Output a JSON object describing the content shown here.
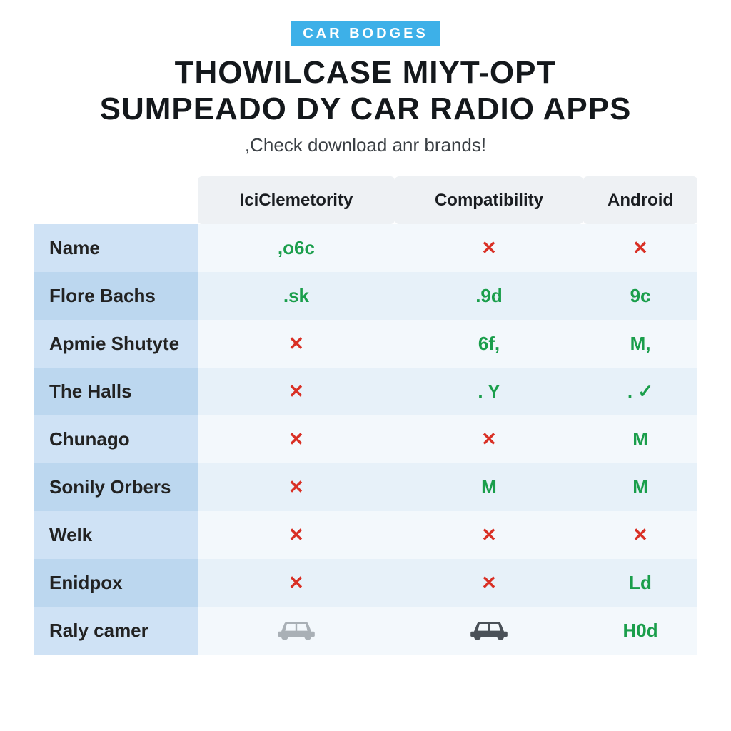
{
  "badge": "CAR BODGES",
  "title_line1": "THOWILCASE MIYT-OPT",
  "title_line2": "SUMPEADO DY CAR RADIO APPS",
  "subtitle": ",Check download anr brands!",
  "colors": {
    "badge_bg": "#3db0e8",
    "green": "#1a9e4b",
    "red": "#d93025",
    "row_label_odd": "#cfe2f5",
    "row_label_even": "#bcd7ef",
    "cell_odd": "#f3f8fc",
    "cell_even": "#e7f1f9",
    "header_bg": "#eef1f4"
  },
  "columns": [
    "IciClemetority",
    "Compatibility",
    "Android"
  ],
  "rows": [
    {
      "label": "Name",
      "cells": [
        {
          "v": ",o6c",
          "c": "green"
        },
        {
          "v": "✕",
          "c": "red"
        },
        {
          "v": "✕",
          "c": "red"
        }
      ]
    },
    {
      "label": "Flore Bachs",
      "cells": [
        {
          "v": ".sk",
          "c": "green"
        },
        {
          "v": ".9d",
          "c": "green"
        },
        {
          "v": "9c",
          "c": "green"
        }
      ]
    },
    {
      "label": "Apmie Shutyte",
      "cells": [
        {
          "v": "✕",
          "c": "red"
        },
        {
          "v": "6f,",
          "c": "green"
        },
        {
          "v": "M,",
          "c": "green"
        }
      ]
    },
    {
      "label": "The Halls",
      "cells": [
        {
          "v": "✕",
          "c": "red"
        },
        {
          "v": ". Y",
          "c": "green"
        },
        {
          "v": ". ✓",
          "c": "green"
        }
      ]
    },
    {
      "label": "Chunago",
      "cells": [
        {
          "v": "✕",
          "c": "red"
        },
        {
          "v": "✕",
          "c": "red"
        },
        {
          "v": "M",
          "c": "green"
        }
      ]
    },
    {
      "label": "Sonily Orbers",
      "cells": [
        {
          "v": "✕",
          "c": "red"
        },
        {
          "v": "M",
          "c": "green"
        },
        {
          "v": "M",
          "c": "green"
        }
      ]
    },
    {
      "label": "Welk",
      "cells": [
        {
          "v": "✕",
          "c": "red"
        },
        {
          "v": "✕",
          "c": "red"
        },
        {
          "v": "✕",
          "c": "red"
        }
      ]
    },
    {
      "label": "Enidpox",
      "cells": [
        {
          "v": "✕",
          "c": "red"
        },
        {
          "v": "✕",
          "c": "red"
        },
        {
          "v": "Ld",
          "c": "green"
        }
      ]
    },
    {
      "label": "Raly camer",
      "cells": [
        {
          "v": "car",
          "c": "icon-gray"
        },
        {
          "v": "car",
          "c": "icon-dark"
        },
        {
          "v": "H0d",
          "c": "green"
        }
      ]
    }
  ]
}
